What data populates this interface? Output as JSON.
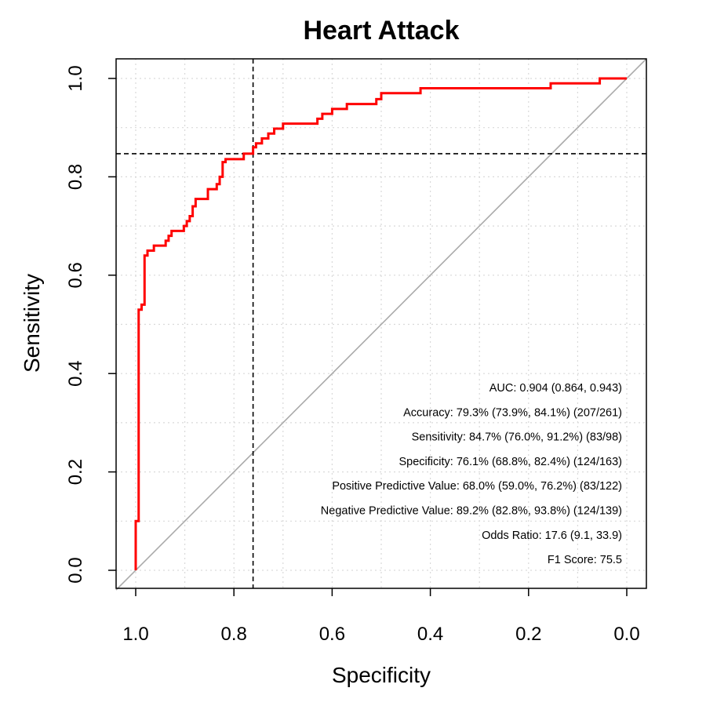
{
  "chart_data": {
    "type": "line",
    "title": "Heart Attack",
    "xlabel": "Specificity",
    "ylabel": "Sensitivity",
    "xlim": [
      1.0,
      0.0
    ],
    "ylim": [
      0.0,
      1.0
    ],
    "x_reversed": true,
    "grid": true,
    "x_ticks": [
      "1.0",
      "0.8",
      "0.6",
      "0.4",
      "0.2",
      "0.0"
    ],
    "y_ticks": [
      "0.0",
      "0.2",
      "0.4",
      "0.6",
      "0.8",
      "1.0"
    ],
    "x_tick_values": [
      1.0,
      0.8,
      0.6,
      0.4,
      0.2,
      0.0
    ],
    "y_tick_values": [
      0.0,
      0.2,
      0.4,
      0.6,
      0.8,
      1.0
    ],
    "colors": {
      "roc": "#ff0000",
      "diagonal": "#aaaaaa",
      "grid": "#d9d9d9",
      "threshold": "#000000"
    },
    "series": [
      {
        "type": "step",
        "points": [
          [
            1.0,
            0.0
          ],
          [
            1.0,
            0.1
          ],
          [
            0.994,
            0.1
          ],
          [
            0.994,
            0.53
          ],
          [
            0.988,
            0.53
          ],
          [
            0.988,
            0.54
          ],
          [
            0.982,
            0.54
          ],
          [
            0.982,
            0.64
          ],
          [
            0.976,
            0.64
          ],
          [
            0.976,
            0.65
          ],
          [
            0.963,
            0.65
          ],
          [
            0.963,
            0.66
          ],
          [
            0.939,
            0.66
          ],
          [
            0.939,
            0.67
          ],
          [
            0.933,
            0.67
          ],
          [
            0.933,
            0.68
          ],
          [
            0.927,
            0.68
          ],
          [
            0.927,
            0.69
          ],
          [
            0.902,
            0.69
          ],
          [
            0.902,
            0.7
          ],
          [
            0.896,
            0.7
          ],
          [
            0.896,
            0.71
          ],
          [
            0.89,
            0.71
          ],
          [
            0.89,
            0.72
          ],
          [
            0.884,
            0.72
          ],
          [
            0.884,
            0.74
          ],
          [
            0.878,
            0.74
          ],
          [
            0.878,
            0.755
          ],
          [
            0.853,
            0.755
          ],
          [
            0.853,
            0.775
          ],
          [
            0.835,
            0.775
          ],
          [
            0.835,
            0.785
          ],
          [
            0.829,
            0.785
          ],
          [
            0.829,
            0.8
          ],
          [
            0.823,
            0.8
          ],
          [
            0.823,
            0.83
          ],
          [
            0.817,
            0.83
          ],
          [
            0.817,
            0.836
          ],
          [
            0.78,
            0.836
          ],
          [
            0.78,
            0.847
          ],
          [
            0.761,
            0.847
          ],
          [
            0.761,
            0.86
          ],
          [
            0.755,
            0.86
          ],
          [
            0.755,
            0.868
          ],
          [
            0.743,
            0.868
          ],
          [
            0.743,
            0.878
          ],
          [
            0.73,
            0.878
          ],
          [
            0.73,
            0.888
          ],
          [
            0.718,
            0.888
          ],
          [
            0.718,
            0.898
          ],
          [
            0.7,
            0.898
          ],
          [
            0.7,
            0.908
          ],
          [
            0.63,
            0.908
          ],
          [
            0.63,
            0.918
          ],
          [
            0.62,
            0.918
          ],
          [
            0.62,
            0.928
          ],
          [
            0.6,
            0.928
          ],
          [
            0.6,
            0.938
          ],
          [
            0.57,
            0.938
          ],
          [
            0.57,
            0.948
          ],
          [
            0.51,
            0.948
          ],
          [
            0.51,
            0.958
          ],
          [
            0.5,
            0.958
          ],
          [
            0.5,
            0.97
          ],
          [
            0.42,
            0.97
          ],
          [
            0.42,
            0.98
          ],
          [
            0.155,
            0.98
          ],
          [
            0.155,
            0.99
          ],
          [
            0.055,
            0.99
          ],
          [
            0.055,
            1.0
          ],
          [
            0.0,
            1.0
          ]
        ]
      }
    ],
    "reference_line": {
      "from": [
        1.0,
        0.0
      ],
      "to": [
        0.0,
        1.0
      ]
    },
    "threshold_specificity": 0.761,
    "threshold_sensitivity": 0.847,
    "stats": [
      "AUC:  0.904 (0.864, 0.943)",
      "Accuracy:  79.3% (73.9%, 84.1%) (207/261)",
      "Sensitivity:  84.7% (76.0%, 91.2%) (83/98)",
      "Specificity:  76.1% (68.8%, 82.4%) (124/163)",
      "Positive Predictive Value:  68.0% (59.0%, 76.2%) (83/122)",
      "Negative Predictive Value:  89.2% (82.8%, 93.8%) (124/139)",
      "Odds Ratio:  17.6 (9.1, 33.9)",
      "F1 Score:  75.5"
    ]
  }
}
